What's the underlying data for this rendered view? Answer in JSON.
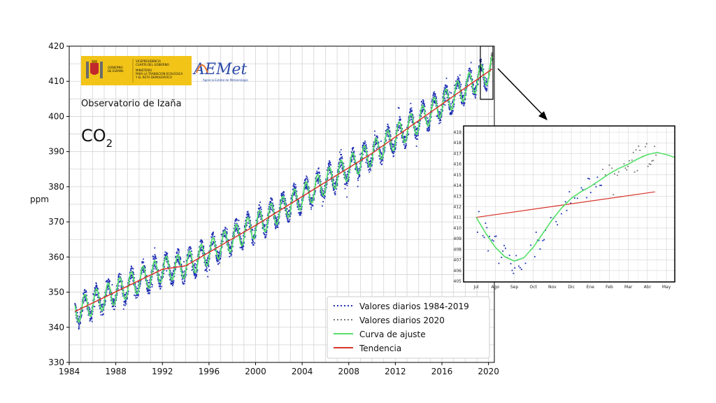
{
  "header": {
    "gov_block": [
      "VICEPRESIDENCIA",
      "CUARTA DEL GOBIERNO",
      "MINISTERIO",
      "PARA LA TRANSICIÓN ECOLÓGICA",
      "Y EL RETO DEMOGRÁFICO"
    ],
    "gov_left": [
      "GOBIERNO",
      "DE ESPAÑA"
    ],
    "aemet_logo": "AEMet",
    "aemet_sub": "Agencia Estatal de Meteorología",
    "observatory": "Observatorio de Izaña",
    "gas_main": "CO",
    "gas_sub": "2"
  },
  "chart_data": [
    {
      "type": "line",
      "ylabel": "ppm",
      "xlim": [
        1984,
        2020.5
      ],
      "ylim": [
        330,
        420
      ],
      "x_ticks": [
        1984,
        1988,
        1992,
        1996,
        2000,
        2004,
        2008,
        2012,
        2016,
        2020
      ],
      "y_ticks": [
        330,
        340,
        350,
        360,
        370,
        380,
        390,
        400,
        410,
        420
      ],
      "grid": true,
      "legend_position": "bottom-right",
      "series": [
        {
          "name": "Valores diarios 1984-2019",
          "style": "blue dots",
          "color": "#1f2fb4",
          "x_range": [
            1984.5,
            2019.9
          ]
        },
        {
          "name": "Valores diarios 2020",
          "style": "grey dots",
          "color": "#777777",
          "x_range": [
            2020.0,
            2020.4
          ]
        },
        {
          "name": "Curva de ajuste",
          "style": "line",
          "color": "#55e06a",
          "trend_points": [
            [
              1984.5,
              344.5
            ],
            [
              1992,
              356.5
            ],
            [
              1994,
              357.5
            ],
            [
              2000,
              369.0
            ],
            [
              2010,
              389.5
            ],
            [
              2020.3,
              413.5
            ]
          ],
          "seasonal_amplitude_ppm": 3.5
        },
        {
          "name": "Tendencia",
          "style": "line",
          "color": "#d9342b",
          "points": [
            [
              1984.5,
              344.5
            ],
            [
              1992,
              356.5
            ],
            [
              1994,
              357.5
            ],
            [
              2000,
              369.0
            ],
            [
              2010,
              389.5
            ],
            [
              2020.3,
              413.5
            ]
          ]
        }
      ]
    },
    {
      "type": "line",
      "note": "inset zoom",
      "x_ticks": [
        "Jul",
        "Ago",
        "Sep",
        "Oct",
        "Nov",
        "Dic",
        "Ene",
        "Feb",
        "Mar",
        "Abr",
        "May"
      ],
      "y_ticks": [
        405,
        406,
        407,
        408,
        409,
        410,
        411,
        412,
        413,
        414,
        415,
        416,
        417,
        418,
        419
      ],
      "ylim": [
        405,
        419
      ],
      "grid": true,
      "series": [
        {
          "name": "Curva de ajuste",
          "color": "#55e06a",
          "points": [
            [
              0,
              411
            ],
            [
              0.5,
              409.5
            ],
            [
              1.0,
              408.2
            ],
            [
              1.5,
              407.3
            ],
            [
              2.0,
              406.9
            ],
            [
              2.5,
              407.2
            ],
            [
              3.0,
              408.2
            ],
            [
              3.5,
              409.5
            ],
            [
              4.0,
              410.8
            ],
            [
              4.5,
              411.9
            ],
            [
              5.0,
              412.8
            ],
            [
              5.5,
              413.4
            ],
            [
              6.0,
              413.9
            ],
            [
              6.5,
              414.5
            ],
            [
              7.0,
              415.1
            ],
            [
              7.5,
              415.6
            ],
            [
              8.0,
              416.0
            ],
            [
              8.5,
              416.5
            ],
            [
              9.0,
              416.9
            ],
            [
              9.5,
              417.1
            ],
            [
              10.0,
              416.9
            ],
            [
              10.5,
              416.6
            ]
          ]
        },
        {
          "name": "Tendencia",
          "color": "#d9342b",
          "points": [
            [
              0,
              411.0
            ],
            [
              9.4,
              413.4
            ]
          ]
        },
        {
          "name": "Valores diarios 1984-2019",
          "color": "#1f2fb4",
          "x_range": [
            0,
            6.6
          ]
        },
        {
          "name": "Valores diarios 2020",
          "color": "#777777",
          "x_range": [
            6.6,
            9.5
          ]
        }
      ]
    }
  ]
}
